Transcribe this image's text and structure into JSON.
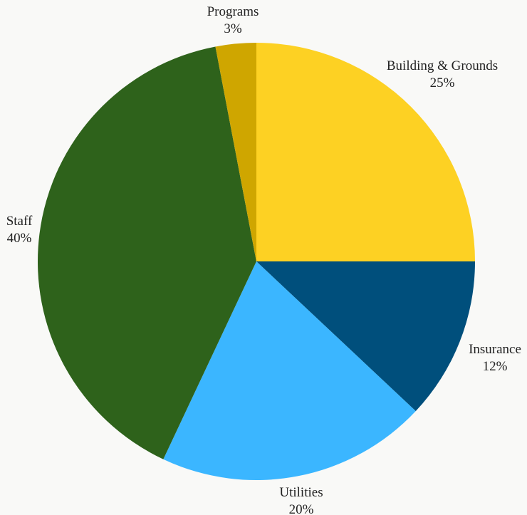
{
  "chart_data": {
    "type": "pie",
    "slices": [
      {
        "label": "Building & Grounds",
        "value": 25,
        "value_label": "25%",
        "color": "#fdd123"
      },
      {
        "label": "Insurance",
        "value": 12,
        "value_label": "12%",
        "color": "#004f7c"
      },
      {
        "label": "Utilities",
        "value": 20,
        "value_label": "20%",
        "color": "#3bb6ff"
      },
      {
        "label": "Staff",
        "value": 40,
        "value_label": "40%",
        "color": "#2e621b"
      },
      {
        "label": "Programs",
        "value": 3,
        "value_label": "3%",
        "color": "#cfa600"
      }
    ],
    "start_angle": "top",
    "direction": "clockwise",
    "legend": "none",
    "labels": "outside"
  }
}
